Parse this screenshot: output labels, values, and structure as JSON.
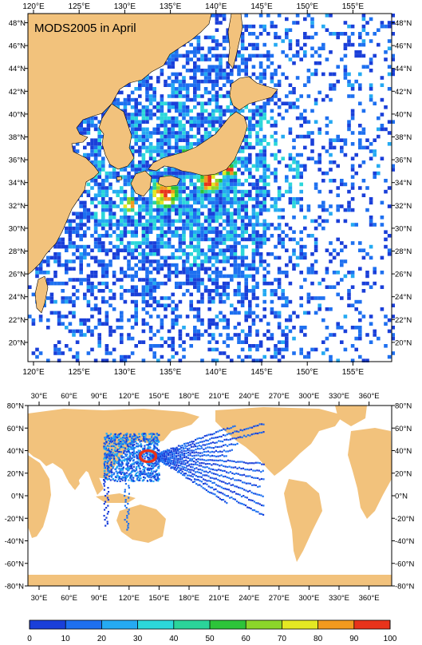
{
  "title": "MODS2005 in April",
  "colors": {
    "land": "#F2C27C",
    "ocean": "#FFFFFF",
    "coastline": "#000000",
    "scale": [
      "#1A3FD9",
      "#1E70F0",
      "#25AAF2",
      "#2CD7DA",
      "#2BD49A",
      "#2DC43A",
      "#8CD52A",
      "#E4E823",
      "#F29A1E",
      "#E8331B"
    ]
  },
  "top_map": {
    "lon_labels": [
      "120°E",
      "125°E",
      "130°E",
      "135°E",
      "140°E",
      "145°E",
      "150°E",
      "155°E"
    ],
    "lat_labels": [
      "48°N",
      "46°N",
      "44°N",
      "42°N",
      "40°N",
      "38°N",
      "36°N",
      "34°N",
      "32°N",
      "30°N",
      "28°N",
      "26°N",
      "24°N",
      "22°N",
      "20°N"
    ]
  },
  "bottom_map": {
    "lon_labels": [
      "30°E",
      "60°E",
      "90°E",
      "120°E",
      "150°E",
      "180°E",
      "210°E",
      "240°E",
      "270°E",
      "300°E",
      "330°E",
      "360°E"
    ],
    "lat_labels": [
      "80°N",
      "60°N",
      "40°N",
      "20°N",
      "0°N",
      "-20°N",
      "-40°N",
      "-60°N",
      "-80°N"
    ]
  },
  "colorbar": {
    "ticks": [
      "0",
      "10",
      "20",
      "30",
      "40",
      "50",
      "60",
      "70",
      "80",
      "90",
      "100"
    ]
  }
}
